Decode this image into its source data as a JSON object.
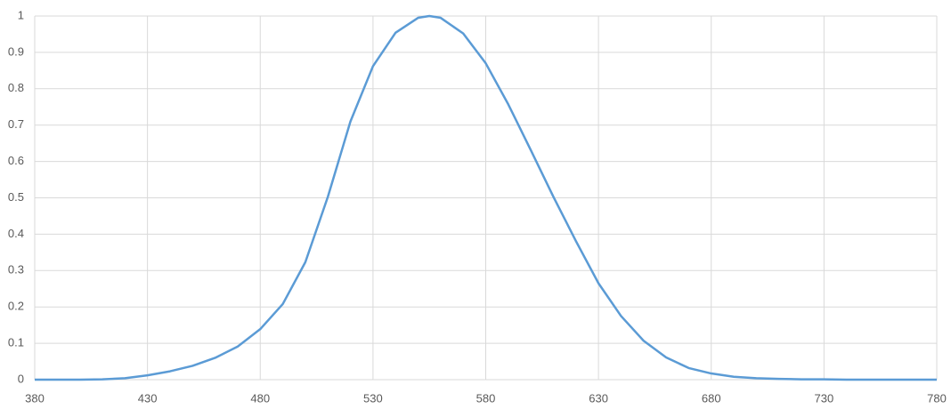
{
  "chart_data": {
    "type": "line",
    "x": [
      380,
      390,
      400,
      410,
      420,
      430,
      440,
      450,
      460,
      470,
      480,
      490,
      500,
      510,
      520,
      530,
      540,
      550,
      555,
      560,
      570,
      580,
      590,
      600,
      610,
      620,
      630,
      640,
      650,
      660,
      670,
      680,
      690,
      700,
      710,
      720,
      730,
      740,
      750,
      760,
      770,
      780
    ],
    "series": [
      {
        "color": "#5b9bd5",
        "values": [
          0.0,
          0.0,
          0.0,
          0.001,
          0.004,
          0.012,
          0.023,
          0.038,
          0.06,
          0.091,
          0.139,
          0.208,
          0.323,
          0.503,
          0.71,
          0.862,
          0.954,
          0.995,
          1.0,
          0.995,
          0.952,
          0.87,
          0.757,
          0.631,
          0.503,
          0.381,
          0.265,
          0.175,
          0.107,
          0.061,
          0.032,
          0.017,
          0.008,
          0.004,
          0.002,
          0.001,
          0.001,
          0.0,
          0.0,
          0.0,
          0.0,
          0.0
        ]
      }
    ],
    "xlim": [
      380,
      780
    ],
    "xticks": [
      380,
      430,
      480,
      530,
      580,
      630,
      680,
      730,
      780
    ],
    "ylim": [
      0,
      1
    ],
    "yticks": [
      0,
      0.1,
      0.2,
      0.3,
      0.4,
      0.5,
      0.6,
      0.7,
      0.8,
      0.9,
      1
    ],
    "grid": true
  }
}
